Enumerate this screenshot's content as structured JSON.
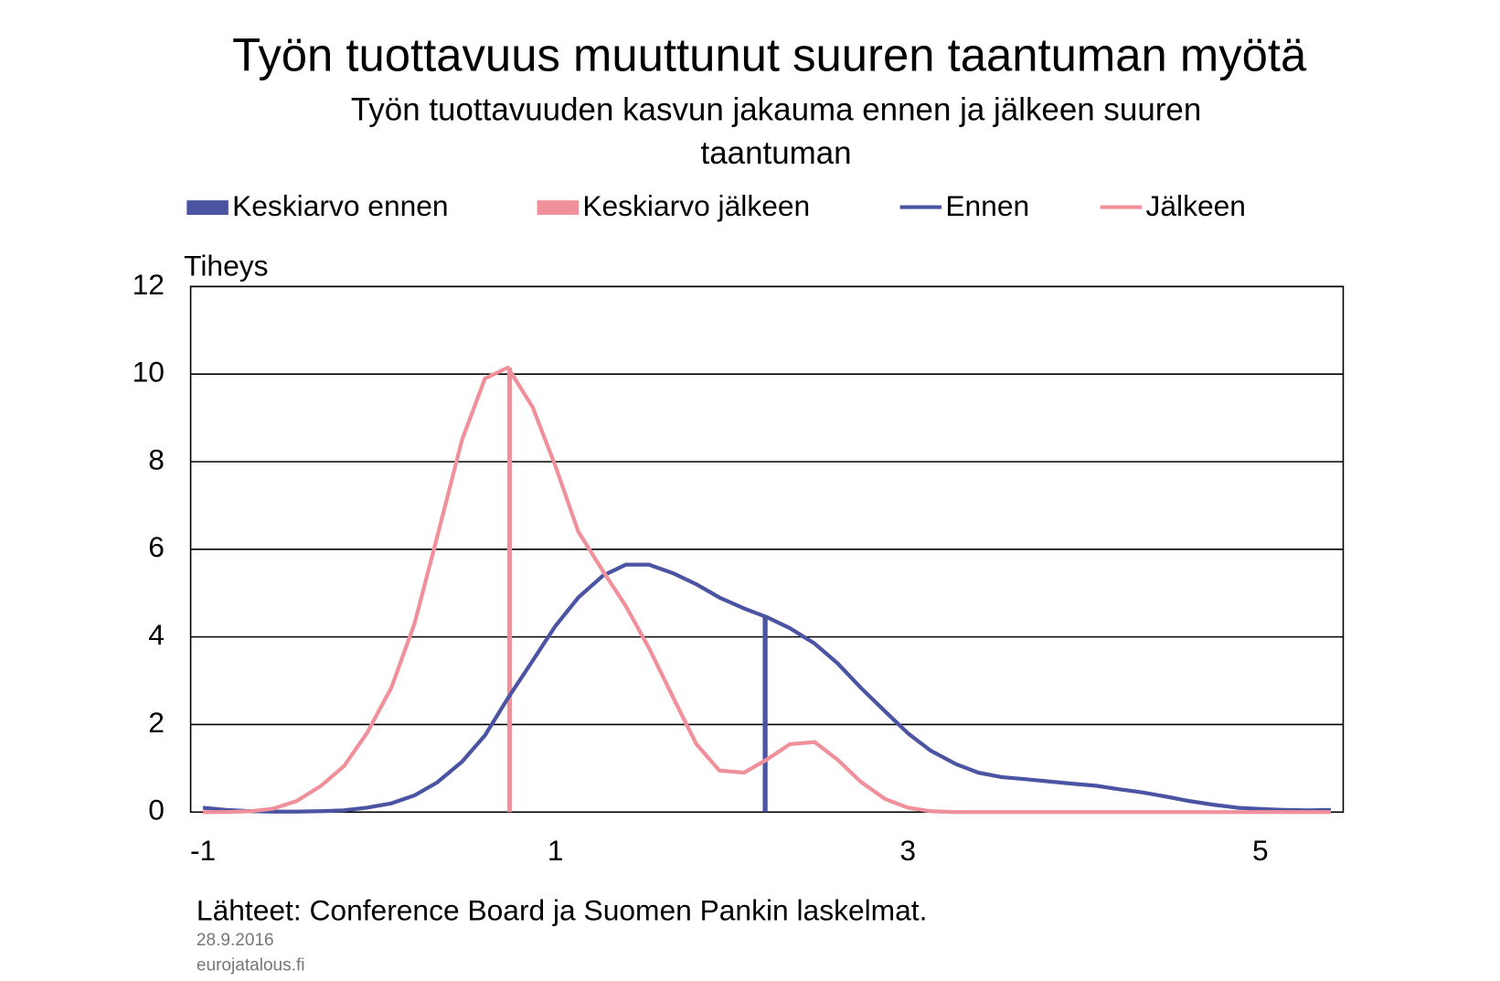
{
  "chart_data": {
    "type": "line",
    "title": "Työn tuottavuus muuttunut suuren taantuman myötä",
    "subtitle": "Työn tuottavuuden kasvun jakauma ennen ja jälkeen suuren taantuman",
    "y_label": "Tiheys",
    "source": "Lähteet: Conference Board ja Suomen Pankin laskelmat.",
    "date": "28.9.2016",
    "site": "eurojatalous.fi",
    "xlim": [
      -1.07,
      5.47
    ],
    "ylim": [
      0,
      12
    ],
    "xticks": [
      -1,
      1,
      3,
      5
    ],
    "yticks": [
      0,
      2,
      4,
      6,
      8,
      10,
      12
    ],
    "grid": true,
    "legend": "top",
    "x": [
      -1,
      -0.87,
      -0.73,
      -0.6,
      -0.47,
      -0.33,
      -0.2,
      -0.07,
      0.07,
      0.2,
      0.33,
      0.47,
      0.6,
      0.73,
      0.87,
      1,
      1.13,
      1.27,
      1.4,
      1.53,
      1.67,
      1.8,
      1.93,
      2.07,
      2.2,
      2.33,
      2.47,
      2.6,
      2.73,
      2.87,
      3,
      3.13,
      3.27,
      3.4,
      3.53,
      3.67,
      3.8,
      3.93,
      4.07,
      4.2,
      4.33,
      4.47,
      4.6,
      4.73,
      4.87,
      5,
      5.13,
      5.27,
      5.4
    ],
    "series": [
      {
        "name": "Keskiarvo ennen",
        "style": "bar",
        "color": "#4b54a3",
        "x": [
          2.19
        ],
        "values": [
          4.45
        ]
      },
      {
        "name": "Keskiarvo jälkeen",
        "style": "bar",
        "color": "#f0909a",
        "x": [
          0.74
        ],
        "values": [
          10.15
        ]
      },
      {
        "name": "Ennen",
        "style": "line",
        "color": "#4b54a3",
        "values": [
          0.1,
          0.05,
          0.02,
          0.01,
          0.01,
          0.02,
          0.04,
          0.1,
          0.2,
          0.38,
          0.68,
          1.15,
          1.75,
          2.6,
          3.45,
          4.25,
          4.9,
          5.4,
          5.65,
          5.65,
          5.45,
          5.2,
          4.9,
          4.65,
          4.45,
          4.2,
          3.85,
          3.4,
          2.85,
          2.3,
          1.8,
          1.4,
          1.1,
          0.9,
          0.8,
          0.75,
          0.7,
          0.65,
          0.6,
          0.52,
          0.45,
          0.35,
          0.25,
          0.17,
          0.1,
          0.07,
          0.05,
          0.04,
          0.05
        ]
      },
      {
        "name": "Jälkeen",
        "style": "line",
        "color": "#f0909a",
        "values": [
          0,
          0,
          0.02,
          0.08,
          0.25,
          0.6,
          1.05,
          1.8,
          2.85,
          4.3,
          6.3,
          8.5,
          9.9,
          10.15,
          9.25,
          7.9,
          6.4,
          5.5,
          4.7,
          3.75,
          2.6,
          1.55,
          0.95,
          0.9,
          1.2,
          1.55,
          1.6,
          1.2,
          0.7,
          0.3,
          0.1,
          0.02,
          0,
          0,
          0,
          0,
          0,
          0,
          0,
          0,
          0,
          0,
          0,
          0,
          0,
          0,
          0,
          0,
          0
        ]
      }
    ]
  }
}
